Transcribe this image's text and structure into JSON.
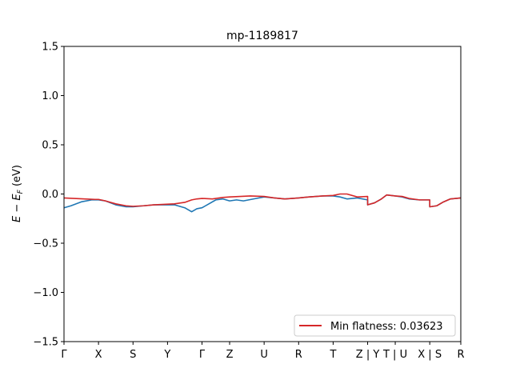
{
  "chart_data": {
    "type": "line",
    "title": "mp-1189817",
    "ylabel": "E − E_F (eV)",
    "xlabel": "",
    "ylim": [
      -1.5,
      1.5
    ],
    "xlim": [
      0,
      11.5
    ],
    "yticks": [
      -1.5,
      -1.0,
      -0.5,
      0.0,
      0.5,
      1.0,
      1.5
    ],
    "ytick_labels": [
      "−1.5",
      "−1.0",
      "−0.5",
      "0.0",
      "0.5",
      "1.0",
      "1.5"
    ],
    "xticks": [
      {
        "x": 0.0,
        "label": "Γ"
      },
      {
        "x": 1.0,
        "label": "X"
      },
      {
        "x": 2.0,
        "label": "S"
      },
      {
        "x": 3.0,
        "label": "Y"
      },
      {
        "x": 4.0,
        "label": "Γ"
      },
      {
        "x": 4.8,
        "label": "Z"
      },
      {
        "x": 5.8,
        "label": "U"
      },
      {
        "x": 6.8,
        "label": "R"
      },
      {
        "x": 7.8,
        "label": "T"
      },
      {
        "x": 8.8,
        "label": "Z | Y"
      },
      {
        "x": 9.6,
        "label": "T | U"
      },
      {
        "x": 10.6,
        "label": "X | S"
      },
      {
        "x": 11.5,
        "label": "R"
      }
    ],
    "grid": false,
    "legend": {
      "placement": "lower-right",
      "label": "Min flatness: 0.03623"
    },
    "series": [
      {
        "color": "#1f77b4",
        "x": [
          0.0,
          0.2,
          0.5,
          0.8,
          1.0,
          1.2,
          1.5,
          1.8,
          2.0,
          2.3,
          2.6,
          2.9,
          3.2,
          3.5,
          3.7,
          3.85,
          4.0,
          4.2,
          4.4,
          4.6,
          4.8,
          5.0,
          5.2,
          5.5,
          5.8,
          6.1,
          6.4,
          6.8,
          7.1,
          7.5,
          7.8,
          8.0,
          8.2,
          8.5,
          8.8,
          8.8,
          9.0,
          9.2,
          9.35,
          9.6,
          9.8,
          10.0,
          10.3,
          10.6,
          10.6,
          10.8,
          11.0,
          11.2,
          11.5
        ],
        "y": [
          -0.14,
          -0.12,
          -0.08,
          -0.06,
          -0.06,
          -0.07,
          -0.11,
          -0.13,
          -0.13,
          -0.12,
          -0.11,
          -0.11,
          -0.11,
          -0.14,
          -0.18,
          -0.15,
          -0.14,
          -0.1,
          -0.06,
          -0.05,
          -0.07,
          -0.06,
          -0.07,
          -0.05,
          -0.03,
          -0.04,
          -0.05,
          -0.04,
          -0.03,
          -0.02,
          -0.02,
          -0.03,
          -0.05,
          -0.04,
          -0.06,
          -0.11,
          -0.09,
          -0.05,
          -0.01,
          -0.02,
          -0.03,
          -0.05,
          -0.06,
          -0.06,
          -0.13,
          -0.12,
          -0.08,
          -0.05,
          -0.04
        ]
      },
      {
        "name": "Min flatness: 0.03623",
        "color": "#d62728",
        "x": [
          0.0,
          0.3,
          0.6,
          0.9,
          1.0,
          1.2,
          1.5,
          1.8,
          2.0,
          2.3,
          2.6,
          2.9,
          3.2,
          3.5,
          3.7,
          3.85,
          4.0,
          4.3,
          4.6,
          4.8,
          5.1,
          5.4,
          5.8,
          6.1,
          6.4,
          6.8,
          7.1,
          7.5,
          7.8,
          8.0,
          8.2,
          8.5,
          8.8,
          8.8,
          9.0,
          9.2,
          9.35,
          9.6,
          9.8,
          10.0,
          10.3,
          10.6,
          10.6,
          10.8,
          11.0,
          11.2,
          11.5
        ],
        "y": [
          -0.04,
          -0.045,
          -0.05,
          -0.055,
          -0.055,
          -0.07,
          -0.1,
          -0.12,
          -0.125,
          -0.12,
          -0.11,
          -0.105,
          -0.1,
          -0.085,
          -0.06,
          -0.05,
          -0.045,
          -0.05,
          -0.035,
          -0.03,
          -0.025,
          -0.02,
          -0.025,
          -0.04,
          -0.05,
          -0.04,
          -0.03,
          -0.02,
          -0.015,
          0.0,
          0.0,
          -0.03,
          -0.025,
          -0.11,
          -0.09,
          -0.05,
          -0.01,
          -0.02,
          -0.025,
          -0.045,
          -0.06,
          -0.06,
          -0.13,
          -0.12,
          -0.08,
          -0.05,
          -0.04
        ]
      }
    ]
  }
}
